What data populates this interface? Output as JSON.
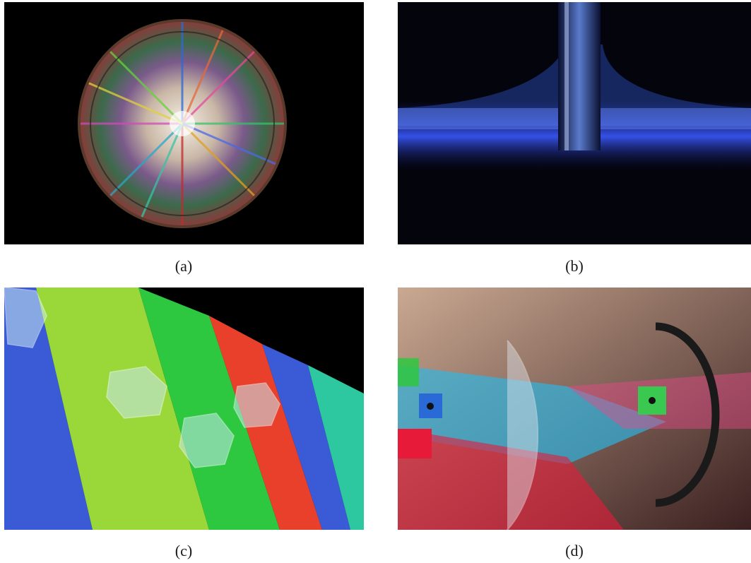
{
  "panels": [
    {
      "id": "a",
      "caption": "(a)",
      "subject": "polarized-light-crystal-spherulite"
    },
    {
      "id": "b",
      "caption": "(b)",
      "subject": "blue-light-in-liquid-with-glass-rod"
    },
    {
      "id": "c",
      "caption": "(c)",
      "subject": "fluorescent-acrylic-strips-with-glass-crystals"
    },
    {
      "id": "d",
      "caption": "(d)",
      "subject": "optics-kit-lenses-colored-light-beams"
    }
  ]
}
